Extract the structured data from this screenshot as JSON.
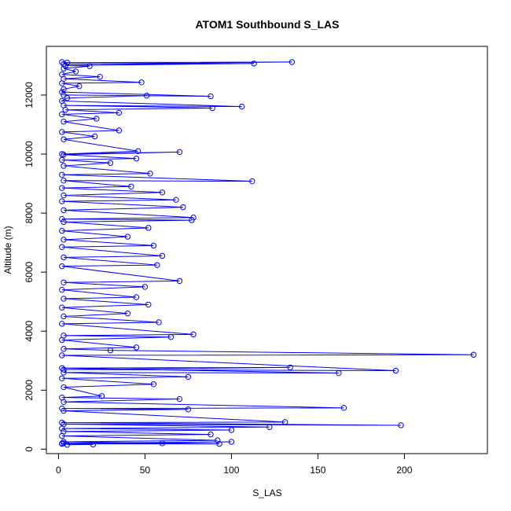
{
  "chart_data": {
    "type": "line",
    "title": "ATOM1 Southbound S_LAS",
    "xlabel": "S_LAS",
    "ylabel": "Altitude (m)",
    "xlim": [
      -7,
      248
    ],
    "ylim": [
      -150,
      13650
    ],
    "x_ticks": [
      0,
      50,
      100,
      150,
      200
    ],
    "y_ticks": [
      0,
      2000,
      4000,
      6000,
      8000,
      10000,
      12000
    ],
    "grid": false,
    "series_color": "#0000ff",
    "marker": "open-circle",
    "series": [
      {
        "points": [
          [
            2,
            13120
          ],
          [
            5,
            13100
          ],
          [
            135,
            13120
          ],
          [
            3,
            13050
          ],
          [
            113,
            13070
          ],
          [
            4,
            13000
          ],
          [
            18,
            12980
          ],
          [
            3,
            12900
          ],
          [
            10,
            12800
          ],
          [
            2,
            12700
          ],
          [
            24,
            12620
          ],
          [
            3,
            12550
          ],
          [
            48,
            12430
          ],
          [
            2,
            12400
          ],
          [
            12,
            12300
          ],
          [
            3,
            12200
          ],
          [
            2,
            12100
          ],
          [
            88,
            11960
          ],
          [
            3,
            12000
          ],
          [
            51,
            11980
          ],
          [
            5,
            11900
          ],
          [
            2,
            11800
          ],
          [
            106,
            11610
          ],
          [
            3,
            11650
          ],
          [
            89,
            11560
          ],
          [
            4,
            11500
          ],
          [
            35,
            11400
          ],
          [
            2,
            11350
          ],
          [
            22,
            11200
          ],
          [
            3,
            11100
          ],
          [
            35,
            10800
          ],
          [
            2,
            10750
          ],
          [
            21,
            10600
          ],
          [
            3,
            10500
          ],
          [
            46,
            10100
          ],
          [
            2,
            10000
          ],
          [
            70,
            10070
          ],
          [
            3,
            9980
          ],
          [
            45,
            9850
          ],
          [
            2,
            9800
          ],
          [
            30,
            9700
          ],
          [
            3,
            9600
          ],
          [
            53,
            9340
          ],
          [
            2,
            9300
          ],
          [
            112,
            9080
          ],
          [
            3,
            9100
          ],
          [
            42,
            8900
          ],
          [
            2,
            8850
          ],
          [
            60,
            8700
          ],
          [
            3,
            8600
          ],
          [
            68,
            8450
          ],
          [
            2,
            8400
          ],
          [
            72,
            8200
          ],
          [
            3,
            8100
          ],
          [
            78,
            7850
          ],
          [
            2,
            7800
          ],
          [
            77,
            7760
          ],
          [
            3,
            7700
          ],
          [
            52,
            7500
          ],
          [
            2,
            7400
          ],
          [
            40,
            7200
          ],
          [
            3,
            7100
          ],
          [
            55,
            6900
          ],
          [
            2,
            6850
          ],
          [
            60,
            6550
          ],
          [
            3,
            6500
          ],
          [
            57,
            6240
          ],
          [
            2,
            6200
          ],
          [
            70,
            5700
          ],
          [
            3,
            5650
          ],
          [
            50,
            5500
          ],
          [
            2,
            5400
          ],
          [
            45,
            5150
          ],
          [
            3,
            5100
          ],
          [
            52,
            4900
          ],
          [
            2,
            4800
          ],
          [
            40,
            4600
          ],
          [
            3,
            4500
          ],
          [
            58,
            4300
          ],
          [
            2,
            4250
          ],
          [
            78,
            3890
          ],
          [
            3,
            3850
          ],
          [
            65,
            3800
          ],
          [
            2,
            3700
          ],
          [
            45,
            3450
          ],
          [
            3,
            3400
          ],
          [
            30,
            3350
          ],
          [
            240,
            3200
          ],
          [
            2,
            3180
          ],
          [
            195,
            2660
          ],
          [
            3,
            2700
          ],
          [
            134,
            2770
          ],
          [
            2,
            2750
          ],
          [
            162,
            2580
          ],
          [
            3,
            2600
          ],
          [
            75,
            2450
          ],
          [
            2,
            2400
          ],
          [
            55,
            2200
          ],
          [
            3,
            2100
          ],
          [
            25,
            1800
          ],
          [
            2,
            1750
          ],
          [
            70,
            1700
          ],
          [
            3,
            1600
          ],
          [
            165,
            1400
          ],
          [
            2,
            1380
          ],
          [
            75,
            1350
          ],
          [
            3,
            1300
          ],
          [
            131,
            920
          ],
          [
            2,
            900
          ],
          [
            198,
            810
          ],
          [
            3,
            850
          ],
          [
            122,
            750
          ],
          [
            2,
            700
          ],
          [
            100,
            650
          ],
          [
            3,
            600
          ],
          [
            88,
            500
          ],
          [
            2,
            450
          ],
          [
            92,
            300
          ],
          [
            3,
            250
          ],
          [
            93,
            180
          ],
          [
            2,
            180
          ],
          [
            100,
            250
          ],
          [
            3,
            200
          ],
          [
            60,
            200
          ],
          [
            2,
            190
          ],
          [
            20,
            160
          ],
          [
            5,
            150
          ]
        ]
      }
    ]
  }
}
